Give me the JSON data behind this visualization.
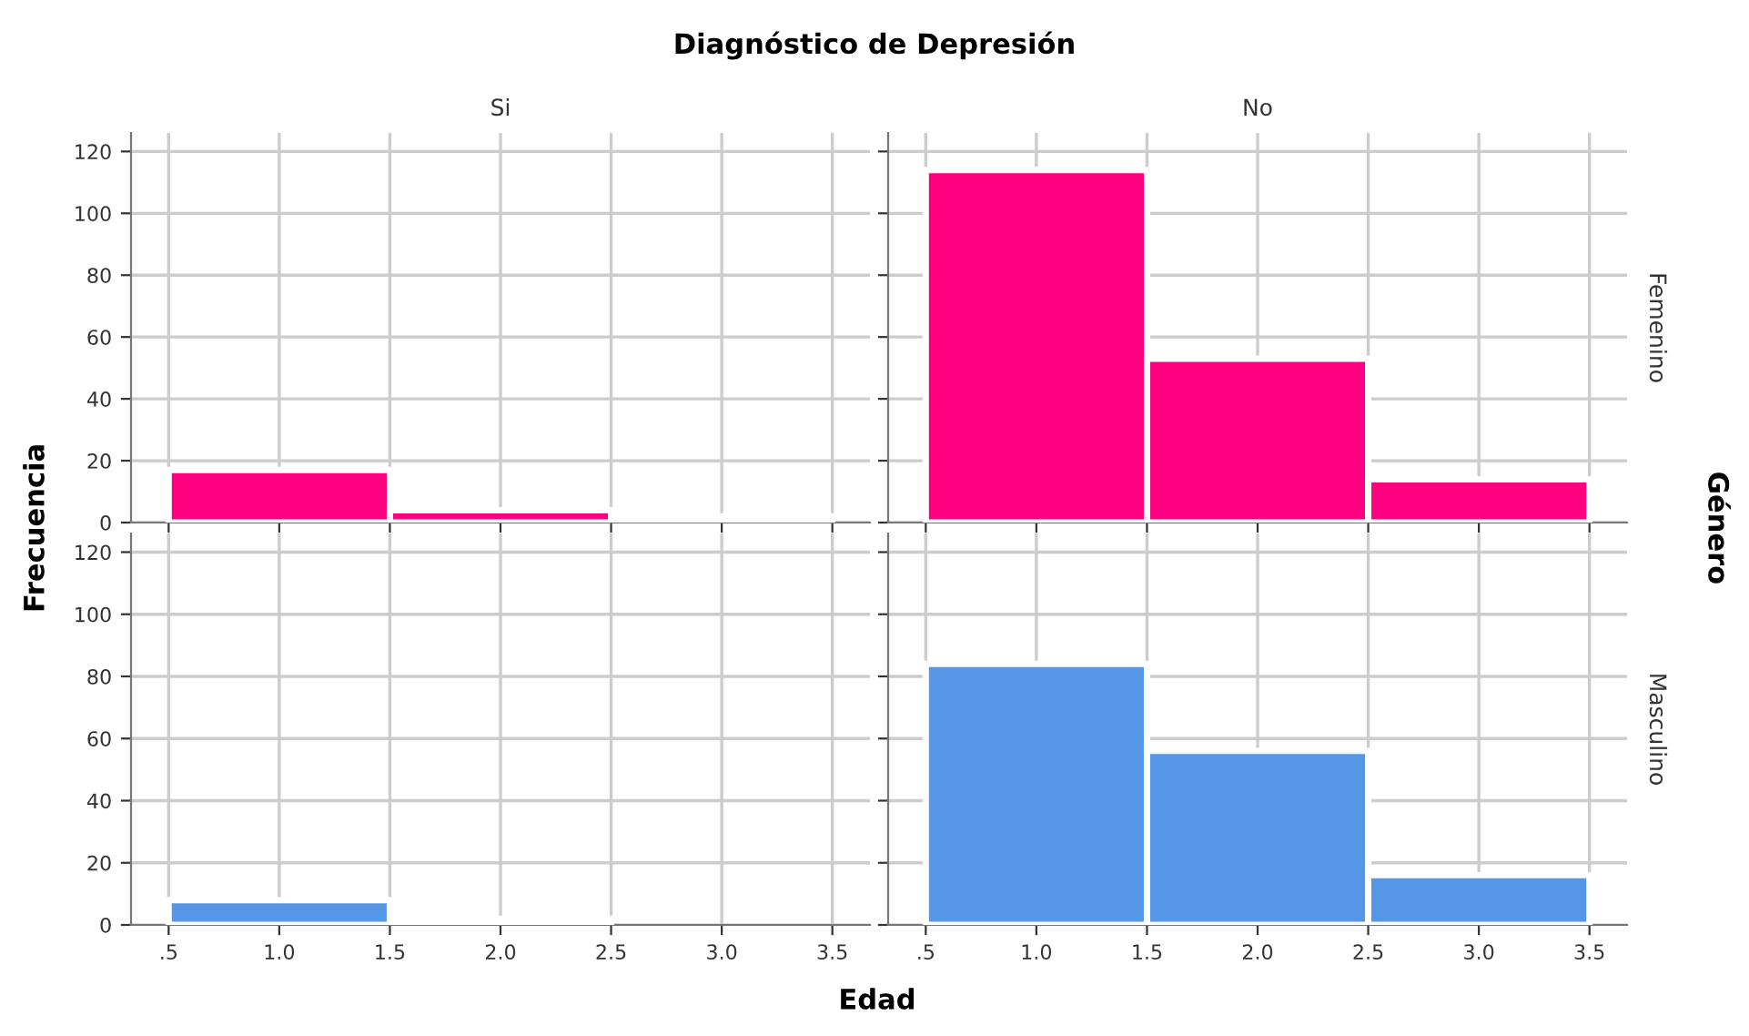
{
  "chart_data": [
    {
      "type": "histogram",
      "title": "Diagnóstico de Depresión",
      "subtitle": "Si",
      "ylabel": "Frecuencia",
      "bins": [
        0.5,
        1.5,
        2.5,
        3.5
      ],
      "values": [
        17,
        4,
        2
      ],
      "color": "#ff0080",
      "xlim": [
        0.33,
        3.67
      ],
      "ylim": [
        0,
        126
      ],
      "xticks": [
        0.5,
        1,
        1.5,
        2,
        2.5,
        3,
        3.5
      ],
      "yticks": [
        0,
        20,
        40,
        60,
        80,
        100,
        120
      ],
      "grid": true,
      "tick_labels": "y"
    },
    {
      "type": "histogram",
      "subtitle": "No",
      "y2label": "Género",
      "annotations": [
        "Femenino"
      ],
      "bins": [
        0.5,
        1.5,
        2.5,
        3.5
      ],
      "values": [
        114,
        53,
        14
      ],
      "color": "#ff0080",
      "xlim": [
        0.33,
        3.67
      ],
      "ylim": [
        0,
        126
      ],
      "xticks": [
        0.5,
        1,
        1.5,
        2,
        2.5,
        3,
        3.5
      ],
      "yticks": [
        0,
        20,
        40,
        60,
        80,
        100,
        120
      ],
      "grid": true,
      "tick_labels": false
    },
    {
      "type": "histogram",
      "bins": [
        0.5,
        1.5,
        2.5,
        3.5
      ],
      "values": [
        8,
        2,
        0
      ],
      "color": "#5596e6",
      "xlim": [
        0.33,
        3.67
      ],
      "ylim": [
        0,
        126
      ],
      "xticks": [
        {
          "value": 0.5,
          "label": ".5"
        },
        {
          "value": 1,
          "label": "1.0"
        },
        1.5,
        {
          "value": 2,
          "label": "2.0"
        },
        2.5,
        {
          "value": 3,
          "label": "3.0"
        },
        3.5
      ],
      "yticks": [
        0,
        20,
        40,
        60,
        80,
        100,
        120
      ],
      "grid": true
    },
    {
      "type": "histogram",
      "xlabel": "Edad",
      "annotations": [
        "Masculino"
      ],
      "bins": [
        0.5,
        1.5,
        2.5,
        3.5
      ],
      "values": [
        84,
        56,
        16
      ],
      "color": "#5596e6",
      "xlim": [
        0.33,
        3.67
      ],
      "ylim": [
        0,
        126
      ],
      "xticks": [
        {
          "value": 0.5,
          "label": ".5"
        },
        {
          "value": 1,
          "label": "1.0"
        },
        1.5,
        {
          "value": 2,
          "label": "2.0"
        },
        2.5,
        {
          "value": 3,
          "label": "3.0"
        },
        3.5
      ],
      "yticks": [
        0,
        20,
        40,
        60,
        80,
        100,
        120
      ],
      "grid": true,
      "tick_labels": "x"
    }
  ]
}
